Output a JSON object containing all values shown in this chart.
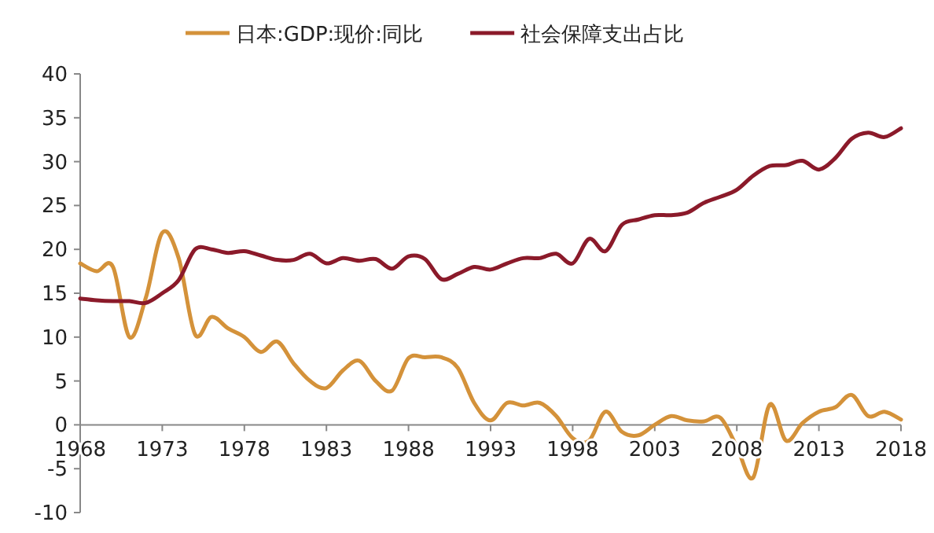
{
  "chart_data": {
    "type": "line",
    "legend": "top",
    "grid": false,
    "marker": "none",
    "line_style": "solid",
    "x": [
      1968,
      1969,
      1970,
      1971,
      1972,
      1973,
      1974,
      1975,
      1976,
      1977,
      1978,
      1979,
      1980,
      1981,
      1982,
      1983,
      1984,
      1985,
      1986,
      1987,
      1988,
      1989,
      1990,
      1991,
      1992,
      1993,
      1994,
      1995,
      1996,
      1997,
      1998,
      1999,
      2000,
      2001,
      2002,
      2003,
      2004,
      2005,
      2006,
      2007,
      2008,
      2009,
      2010,
      2011,
      2012,
      2013,
      2014,
      2015,
      2016,
      2017,
      2018
    ],
    "xlim": [
      1968,
      2018
    ],
    "xticks": [
      1968,
      1973,
      1978,
      1983,
      1988,
      1993,
      1998,
      2003,
      2008,
      2013,
      2018
    ],
    "ylim": [
      -10,
      40
    ],
    "yticks": [
      -10,
      -5,
      0,
      5,
      10,
      15,
      20,
      25,
      30,
      35,
      40
    ],
    "series": [
      {
        "name": "日本:GDP:现价:同比",
        "color": "#d4923a",
        "values": [
          18.4,
          17.5,
          18.0,
          10.0,
          14.5,
          21.9,
          19.0,
          10.3,
          12.3,
          11.0,
          10.0,
          8.3,
          9.5,
          7.0,
          5.0,
          4.2,
          6.2,
          7.3,
          5.0,
          3.9,
          7.6,
          7.7,
          7.7,
          6.5,
          2.5,
          0.5,
          2.5,
          2.2,
          2.5,
          1.0,
          -1.5,
          -1.8,
          1.5,
          -0.8,
          -1.2,
          0,
          1.0,
          0.5,
          0.4,
          0.8,
          -2.5,
          -6.0,
          2.3,
          -1.8,
          0.2,
          1.5,
          2.0,
          3.4,
          1.0,
          1.5,
          0.6
        ]
      },
      {
        "name": "社会保障支出占比",
        "color": "#8b1a2a",
        "values": [
          14.4,
          14.2,
          14.1,
          14.1,
          13.9,
          15.0,
          16.5,
          20.0,
          20.0,
          19.6,
          19.8,
          19.3,
          18.8,
          18.8,
          19.5,
          18.4,
          19.0,
          18.7,
          18.9,
          17.8,
          19.2,
          18.9,
          16.6,
          17.2,
          18.0,
          17.7,
          18.4,
          19.0,
          19.0,
          19.5,
          18.4,
          21.2,
          19.8,
          22.8,
          23.4,
          23.9,
          23.9,
          24.2,
          25.3,
          26.0,
          26.8,
          28.4,
          29.5,
          29.6,
          30.1,
          29.1,
          30.4,
          32.6,
          33.3,
          32.8,
          33.8
        ]
      }
    ]
  }
}
